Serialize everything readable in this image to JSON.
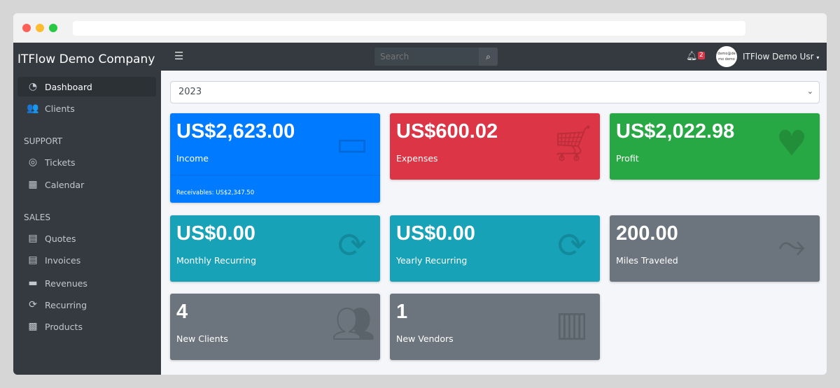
{
  "sidebar": {
    "brand": "ITFlow Demo Company",
    "items": [
      {
        "label": "Dashboard",
        "icon": "tachometer-icon"
      },
      {
        "label": "Clients",
        "icon": "users-icon"
      }
    ],
    "support_header": "SUPPORT",
    "support": [
      {
        "label": "Tickets",
        "icon": "life-ring-icon"
      },
      {
        "label": "Calendar",
        "icon": "calendar-icon"
      }
    ],
    "sales_header": "SALES",
    "sales": [
      {
        "label": "Quotes",
        "icon": "file-icon"
      },
      {
        "label": "Invoices",
        "icon": "invoice-icon"
      },
      {
        "label": "Revenues",
        "icon": "credit-card-icon"
      },
      {
        "label": "Recurring",
        "icon": "sync-icon"
      },
      {
        "label": "Products",
        "icon": "box-icon"
      }
    ]
  },
  "navbar": {
    "search_placeholder": "Search",
    "notification_count": "2",
    "avatar_text": "demo@demo demo",
    "user": "ITFlow Demo Usr"
  },
  "year_select": "2023",
  "cards": [
    {
      "value": "US$2,623.00",
      "label": "Income",
      "footer": "Receivables: US$2,347.50",
      "color": "#007bff",
      "icon": "credit-card-icon"
    },
    {
      "value": "US$600.02",
      "label": "Expenses",
      "color": "#dc3545",
      "icon": "shopping-cart-icon"
    },
    {
      "value": "US$2,022.98",
      "label": "Profit",
      "color": "#28a745",
      "icon": "heart-icon"
    },
    {
      "value": "US$0.00",
      "label": "Monthly Recurring",
      "color": "#17a2b8",
      "icon": "sync-icon"
    },
    {
      "value": "US$0.00",
      "label": "Yearly Recurring",
      "color": "#17a2b8",
      "icon": "sync-icon"
    },
    {
      "value": "200.00",
      "label": "Miles Traveled",
      "color": "#6c757d",
      "icon": "route-icon"
    },
    {
      "value": "4",
      "label": "New Clients",
      "color": "#6c757d",
      "icon": "users-icon"
    },
    {
      "value": "1",
      "label": "New Vendors",
      "color": "#6c757d",
      "icon": "building-icon"
    }
  ]
}
